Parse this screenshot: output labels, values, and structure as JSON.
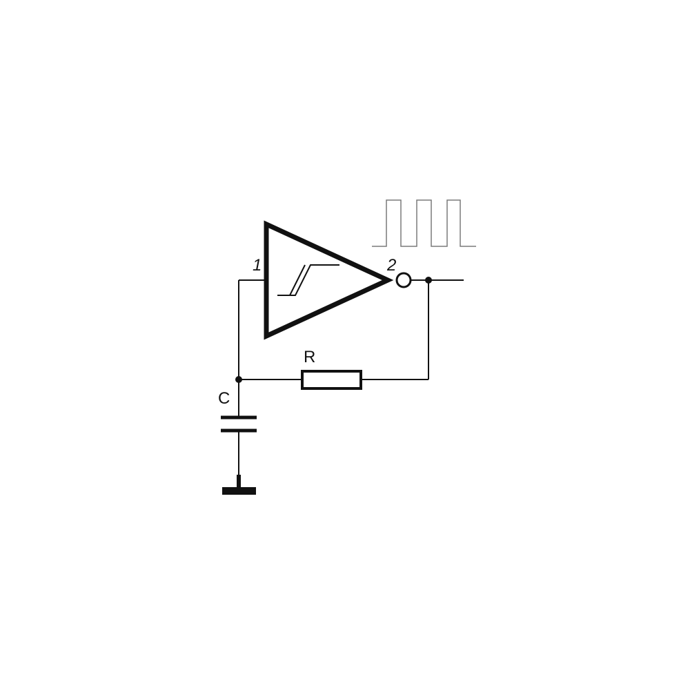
{
  "diagram": {
    "type": "schmitt-trigger-rc-oscillator",
    "colors": {
      "line": "#111111",
      "waveform": "#7a7a7a",
      "background": "#ffffff"
    },
    "labels": {
      "input_pin": "1",
      "output_pin": "2",
      "resistor": "R",
      "capacitor": "C"
    }
  }
}
